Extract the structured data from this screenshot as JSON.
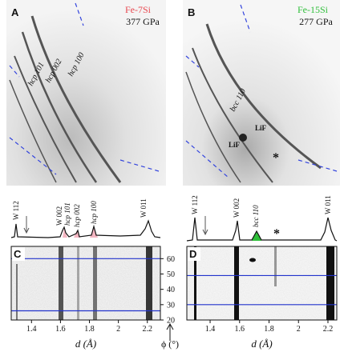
{
  "figure": {
    "panel_a": {
      "label": "A",
      "sample": "Fe-7Si",
      "pressure": "377 GPa",
      "peaks": [
        "hcp 100",
        "hcp 002",
        "hcp 101"
      ]
    },
    "panel_b": {
      "label": "B",
      "sample": "Fe-15Si",
      "pressure": "277 GPa",
      "peaks": [
        "bcc 110",
        "LiF",
        "LiF",
        "*"
      ]
    },
    "spectrum_left": {
      "labels": [
        "W 112",
        "W 002",
        "hcp 101",
        "hcp 002",
        "hcp 100",
        "W 011"
      ]
    },
    "spectrum_right": {
      "labels": [
        "W 112",
        "W 002",
        "bcc 110",
        "*",
        "W 011"
      ]
    }
  },
  "chart_data": [
    {
      "type": "image",
      "label": "C",
      "xlabel": "d (Å)",
      "xlim": [
        1.26,
        2.29
      ],
      "xticks": [
        1.4,
        1.6,
        1.8,
        2.0,
        2.2
      ],
      "ylim": [
        20,
        68
      ],
      "yticks": [
        20,
        30,
        40,
        50,
        60
      ],
      "ylabel": "ϕ (°)",
      "hlines": [
        60,
        26
      ],
      "line_color": "#2233cc"
    },
    {
      "type": "image",
      "label": "D",
      "xlabel": "d (Å)",
      "xlim": [
        1.242,
        2.26
      ],
      "xticks": [
        1.4,
        1.6,
        1.8,
        2.0,
        2.2
      ],
      "ylim": [
        20,
        68
      ],
      "hlines": [
        49,
        30
      ],
      "line_color": "#2233cc"
    }
  ]
}
